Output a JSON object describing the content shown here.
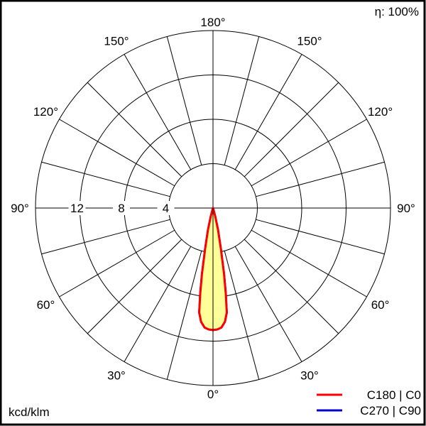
{
  "chart_data": {
    "type": "polar",
    "efficiency_label": "η: 100%",
    "unit_label": "kcd/klm",
    "radial_ticks": [
      4,
      8,
      12
    ],
    "radial_max": 16,
    "angle_labels": [
      "0°",
      "30°",
      "60°",
      "90°",
      "120°",
      "150°",
      "180°",
      "150°",
      "120°",
      "90°",
      "60°",
      "30°"
    ],
    "angle_label_positions": [
      0,
      30,
      60,
      90,
      120,
      150,
      180,
      -150,
      -120,
      -90,
      -60,
      -30
    ],
    "grid": true,
    "legend_position": "bottom-right",
    "series": [
      {
        "name": "C180 | C0",
        "color": "#ff0000",
        "fill": "#ffff99",
        "angles": [
          0,
          2,
          4,
          6,
          7.5,
          8.5,
          9.5,
          11,
          13,
          15,
          20,
          30,
          90
        ],
        "values": [
          11.0,
          10.95,
          10.8,
          10.3,
          9.5,
          7.8,
          6.0,
          3.7,
          2.0,
          0.8,
          0.1,
          0,
          0
        ]
      },
      {
        "name": "C270 | C90",
        "color": "#0000cc",
        "angles": [
          0,
          2,
          4,
          6,
          7.5,
          8.5,
          9.5,
          11,
          13,
          15,
          20,
          30,
          90
        ],
        "values": [
          11.0,
          10.95,
          10.8,
          10.3,
          9.5,
          7.8,
          6.0,
          3.7,
          2.0,
          0.8,
          0.1,
          0,
          0
        ]
      }
    ]
  }
}
